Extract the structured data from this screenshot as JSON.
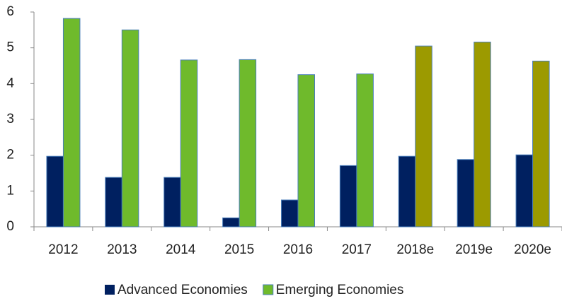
{
  "chart_data": {
    "type": "bar",
    "categories": [
      "2012",
      "2013",
      "2014",
      "2015",
      "2016",
      "2017",
      "2018e",
      "2019e",
      "2020e"
    ],
    "series": [
      {
        "name": "Advanced Economies",
        "color": "#002060",
        "values": [
          1.97,
          1.38,
          1.38,
          0.25,
          0.75,
          1.71,
          1.97,
          1.88,
          2.01
        ]
      },
      {
        "name": "Emerging Economies",
        "color": "#6fba2c",
        "point_colors": [
          "#6fba2c",
          "#6fba2c",
          "#6fba2c",
          "#6fba2c",
          "#6fba2c",
          "#6fba2c",
          "#9c9a00",
          "#9c9a00",
          "#9c9a00"
        ],
        "values": [
          5.82,
          5.5,
          4.66,
          4.67,
          4.25,
          4.27,
          5.05,
          5.16,
          4.63
        ]
      }
    ],
    "ylim": [
      0,
      6
    ],
    "yticks": [
      0,
      1,
      2,
      3,
      4,
      5,
      6
    ],
    "grid": false,
    "legend": "bottom"
  }
}
